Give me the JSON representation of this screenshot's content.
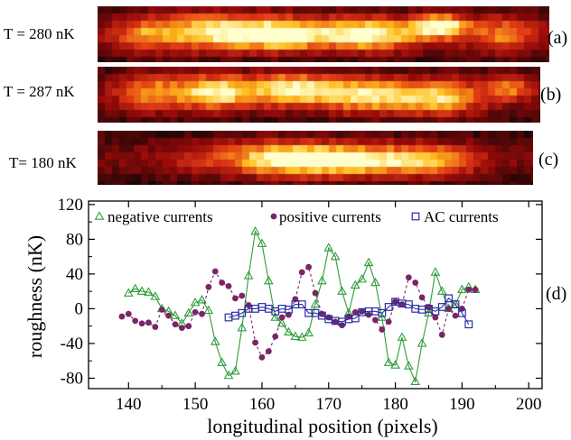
{
  "images": [
    {
      "label": "T = 280 nK",
      "tag": "(a)",
      "blobs": [
        [
          0.25,
          0.45,
          0.12,
          0.35,
          0.85
        ],
        [
          0.41,
          0.5,
          0.1,
          0.3,
          0.95
        ],
        [
          0.6,
          0.5,
          0.11,
          0.3,
          1.0
        ],
        [
          0.76,
          0.35,
          0.06,
          0.22,
          1.0
        ],
        [
          0.9,
          0.5,
          0.08,
          0.35,
          0.55
        ],
        [
          0.1,
          0.5,
          0.07,
          0.35,
          0.45
        ]
      ]
    },
    {
      "label": "T = 287 nK",
      "tag": "(b)",
      "blobs": [
        [
          0.12,
          0.45,
          0.08,
          0.35,
          0.55
        ],
        [
          0.27,
          0.45,
          0.09,
          0.32,
          0.9
        ],
        [
          0.44,
          0.4,
          0.09,
          0.3,
          0.9
        ],
        [
          0.6,
          0.5,
          0.1,
          0.32,
          0.85
        ],
        [
          0.77,
          0.55,
          0.1,
          0.33,
          0.8
        ],
        [
          0.93,
          0.35,
          0.05,
          0.25,
          0.55
        ]
      ]
    },
    {
      "label": "T= 180 nK",
      "tag": "(c)",
      "blobs": [
        [
          0.57,
          0.55,
          0.18,
          0.3,
          1.0
        ],
        [
          0.4,
          0.5,
          0.12,
          0.35,
          0.55
        ],
        [
          0.78,
          0.55,
          0.1,
          0.3,
          0.5
        ],
        [
          0.22,
          0.55,
          0.08,
          0.3,
          0.25
        ]
      ]
    }
  ],
  "panel_d_tag": "(d)",
  "chart_data": {
    "type": "line",
    "title": "",
    "xlabel": "longitudinal position (pixels)",
    "ylabel": "roughness (nK)",
    "xlim": [
      134,
      202
    ],
    "ylim": [
      -92,
      124
    ],
    "xticks": [
      140,
      150,
      160,
      170,
      180,
      190,
      200
    ],
    "yticks": [
      -80,
      -40,
      0,
      40,
      80,
      120
    ],
    "legend_position": "top",
    "series": [
      {
        "name": "negative currents",
        "color": "#2e9d3a",
        "marker": "triangle",
        "line": "solid",
        "x": [
          140,
          141,
          142,
          143,
          144,
          145,
          146,
          147,
          148,
          149,
          150,
          151,
          152,
          153,
          154,
          155,
          156,
          157,
          158,
          159,
          160,
          161,
          162,
          163,
          164,
          165,
          166,
          167,
          168,
          169,
          170,
          171,
          172,
          173,
          174,
          175,
          176,
          177,
          178,
          179,
          180,
          181,
          182,
          183,
          184,
          185,
          186,
          187,
          188,
          189,
          190,
          191,
          192
        ],
        "y": [
          18,
          23,
          20,
          19,
          14,
          0,
          -3,
          -8,
          -17,
          -5,
          7,
          10,
          -2,
          -38,
          -62,
          -77,
          -72,
          -22,
          38,
          89,
          75,
          32,
          -10,
          -17,
          -27,
          -32,
          -33,
          -28,
          5,
          32,
          70,
          60,
          20,
          -5,
          27,
          34,
          53,
          30,
          -10,
          -62,
          -65,
          -33,
          -66,
          -84,
          -40,
          -5,
          42,
          20,
          0,
          5,
          22,
          25,
          22
        ]
      },
      {
        "name": "positive currents",
        "color": "#7b2466",
        "marker": "circle",
        "line": "dashed",
        "x": [
          139,
          140,
          141,
          142,
          143,
          144,
          145,
          146,
          147,
          148,
          149,
          150,
          151,
          152,
          153,
          154,
          155,
          156,
          157,
          158,
          159,
          160,
          161,
          162,
          163,
          164,
          165,
          166,
          167,
          168,
          169,
          170,
          171,
          172,
          173,
          174,
          175,
          176,
          177,
          178,
          179,
          180,
          181,
          182,
          183,
          184,
          185,
          186,
          187,
          188,
          189,
          190,
          191,
          192
        ],
        "y": [
          -9,
          -6,
          -14,
          -17,
          -16,
          -21,
          -1,
          -8,
          -18,
          -22,
          -20,
          -4,
          -6,
          25,
          43,
          30,
          26,
          12,
          15,
          4,
          -39,
          -56,
          -49,
          -32,
          -10,
          -7,
          11,
          42,
          48,
          18,
          -6,
          -10,
          -15,
          -19,
          -9,
          -4,
          -3,
          -7,
          -13,
          -24,
          -15,
          8,
          5,
          36,
          30,
          13,
          2,
          -10,
          -30,
          0,
          -8,
          0,
          22,
          22
        ]
      },
      {
        "name": "AC currents",
        "color": "#2a2ea0",
        "marker": "square",
        "line": "solid",
        "x": [
          155,
          156,
          157,
          158,
          159,
          160,
          161,
          162,
          163,
          164,
          165,
          166,
          167,
          168,
          169,
          170,
          171,
          172,
          173,
          174,
          175,
          176,
          177,
          178,
          179,
          180,
          181,
          182,
          183,
          184,
          185,
          186,
          187,
          188,
          189,
          190,
          191
        ],
        "y": [
          -10,
          -8,
          -5,
          0,
          0,
          2,
          0,
          -3,
          0,
          -1,
          5,
          5,
          -5,
          -5,
          -8,
          -12,
          -14,
          -15,
          -12,
          -11,
          -4,
          -3,
          -3,
          -5,
          2,
          8,
          6,
          5,
          0,
          -1,
          0,
          -3,
          2,
          12,
          5,
          -5,
          -18
        ]
      }
    ]
  }
}
